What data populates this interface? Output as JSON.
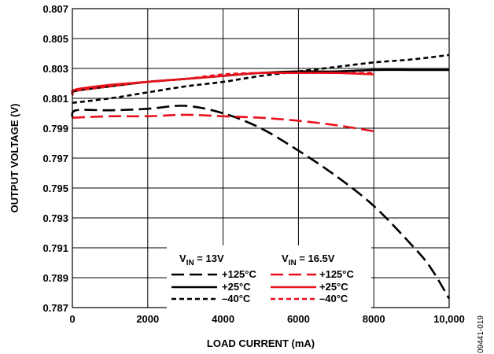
{
  "chart_data": {
    "type": "line",
    "xlabel": "LOAD CURRENT (mA)",
    "ylabel": "OUTPUT VOLTAGE (V)",
    "xlim": [
      0,
      10000
    ],
    "ylim": [
      0.787,
      0.807
    ],
    "x_ticks": [
      0,
      2000,
      4000,
      6000,
      8000,
      10000
    ],
    "x_tick_labels": [
      "0",
      "2000",
      "4000",
      "6000",
      "8000",
      "10,000"
    ],
    "y_ticks": [
      0.787,
      0.789,
      0.791,
      0.793,
      0.795,
      0.797,
      0.799,
      0.801,
      0.803,
      0.805,
      0.807
    ],
    "y_tick_labels": [
      "0.787",
      "0.789",
      "0.791",
      "0.793",
      "0.795",
      "0.797",
      "0.799",
      "0.801",
      "0.803",
      "0.805",
      "0.807"
    ],
    "grid": true,
    "legend": {
      "placement": "bottom-center",
      "groups": [
        {
          "header_main": "V",
          "header_sub": "IN",
          "header_rest": " = 13V",
          "color": "#000000",
          "entries": [
            "+125°C",
            "+25°C",
            "–40°C"
          ]
        },
        {
          "header_main": "V",
          "header_sub": "IN",
          "header_rest": " = 16.5V",
          "color": "#e8101a",
          "entries": [
            "+125°C",
            "+25°C",
            "–40°C"
          ]
        }
      ]
    },
    "series": [
      {
        "group": 0,
        "entry": 0,
        "color": "#000000",
        "dash": "long",
        "x": [
          0,
          100,
          1000,
          2000,
          3000,
          4000,
          5000,
          6000,
          7000,
          8000,
          9000,
          9500,
          10000
        ],
        "y": [
          0.7997,
          0.8002,
          0.8002,
          0.8003,
          0.8005,
          0.8,
          0.799,
          0.7975,
          0.7958,
          0.7938,
          0.7912,
          0.7897,
          0.7876
        ]
      },
      {
        "group": 0,
        "entry": 1,
        "color": "#000000",
        "dash": "solid",
        "x": [
          0,
          100,
          1000,
          2000,
          3000,
          4000,
          5000,
          6000,
          7000,
          8000,
          9000,
          10000
        ],
        "y": [
          0.8013,
          0.8015,
          0.8018,
          0.8021,
          0.8023,
          0.8025,
          0.8027,
          0.8028,
          0.8028,
          0.8029,
          0.8029,
          0.8029
        ]
      },
      {
        "group": 0,
        "entry": 2,
        "color": "#000000",
        "dash": "short",
        "x": [
          0,
          1000,
          2000,
          3000,
          4000,
          5000,
          6000,
          7000,
          8000,
          9000,
          10000
        ],
        "y": [
          0.8007,
          0.801,
          0.8014,
          0.8018,
          0.8021,
          0.8025,
          0.8028,
          0.8031,
          0.8034,
          0.8036,
          0.8039
        ]
      },
      {
        "group": 1,
        "entry": 0,
        "color": "#e8101a",
        "dash": "long",
        "x": [
          0,
          1000,
          2000,
          3000,
          4000,
          5000,
          6000,
          7000,
          8000
        ],
        "y": [
          0.7997,
          0.7998,
          0.7998,
          0.7999,
          0.7998,
          0.7997,
          0.7995,
          0.7992,
          0.7988
        ]
      },
      {
        "group": 1,
        "entry": 1,
        "color": "#e8101a",
        "dash": "solid",
        "x": [
          0,
          100,
          1000,
          2000,
          3000,
          4000,
          5000,
          6000,
          7000,
          8000
        ],
        "y": [
          0.8014,
          0.8016,
          0.8019,
          0.8021,
          0.8023,
          0.8025,
          0.8027,
          0.8027,
          0.8027,
          0.8026
        ]
      },
      {
        "group": 1,
        "entry": 2,
        "color": "#e8101a",
        "dash": "short",
        "x": [
          0,
          100,
          1000,
          2000,
          3000,
          4000,
          5000,
          6000,
          7000,
          8000
        ],
        "y": [
          0.8012,
          0.8015,
          0.8018,
          0.8021,
          0.8023,
          0.8026,
          0.8027,
          0.8027,
          0.8027,
          0.8027
        ]
      }
    ],
    "figure_code": "09441-019"
  }
}
